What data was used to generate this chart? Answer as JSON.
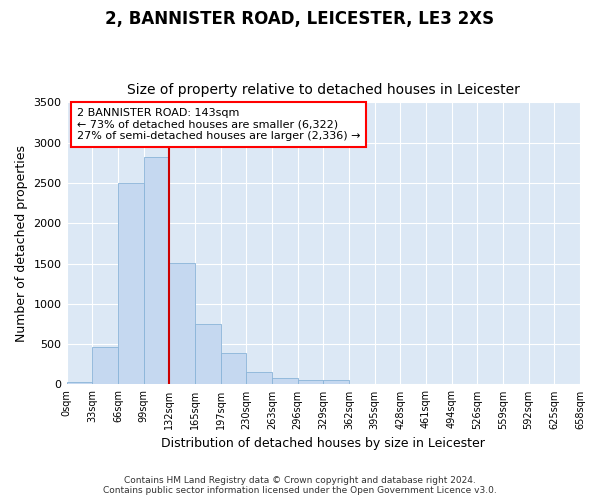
{
  "title1": "2, BANNISTER ROAD, LEICESTER, LE3 2XS",
  "title2": "Size of property relative to detached houses in Leicester",
  "xlabel": "Distribution of detached houses by size in Leicester",
  "ylabel": "Number of detached properties",
  "footnote1": "Contains HM Land Registry data © Crown copyright and database right 2024.",
  "footnote2": "Contains public sector information licensed under the Open Government Licence v3.0.",
  "bar_fill_color": "#c5d8f0",
  "bar_edge_color": "#8ab4d8",
  "background_color": "#dce8f5",
  "annotation_line1": "2 BANNISTER ROAD: 143sqm",
  "annotation_line2": "← 73% of detached houses are smaller (6,322)",
  "annotation_line3": "27% of semi-detached houses are larger (2,336) →",
  "vline_x": 132,
  "bin_edges": [
    0,
    33,
    66,
    99,
    132,
    165,
    198,
    231,
    264,
    297,
    330,
    363,
    396,
    429,
    462,
    495,
    528,
    561,
    594,
    627,
    660
  ],
  "bar_heights": [
    25,
    470,
    2500,
    2820,
    1510,
    750,
    390,
    150,
    75,
    55,
    55,
    0,
    0,
    0,
    0,
    0,
    0,
    0,
    0,
    0
  ],
  "ylim": [
    0,
    3500
  ],
  "xlim": [
    0,
    660
  ],
  "yticks": [
    0,
    500,
    1000,
    1500,
    2000,
    2500,
    3000,
    3500
  ],
  "tick_labels": [
    "0sqm",
    "33sqm",
    "66sqm",
    "99sqm",
    "132sqm",
    "165sqm",
    "197sqm",
    "230sqm",
    "263sqm",
    "296sqm",
    "329sqm",
    "362sqm",
    "395sqm",
    "428sqm",
    "461sqm",
    "494sqm",
    "526sqm",
    "559sqm",
    "592sqm",
    "625sqm",
    "658sqm"
  ],
  "title1_fontsize": 12,
  "title2_fontsize": 10,
  "xlabel_fontsize": 9,
  "ylabel_fontsize": 9,
  "tick_fontsize": 7,
  "footnote_fontsize": 6.5,
  "annot_fontsize": 8
}
